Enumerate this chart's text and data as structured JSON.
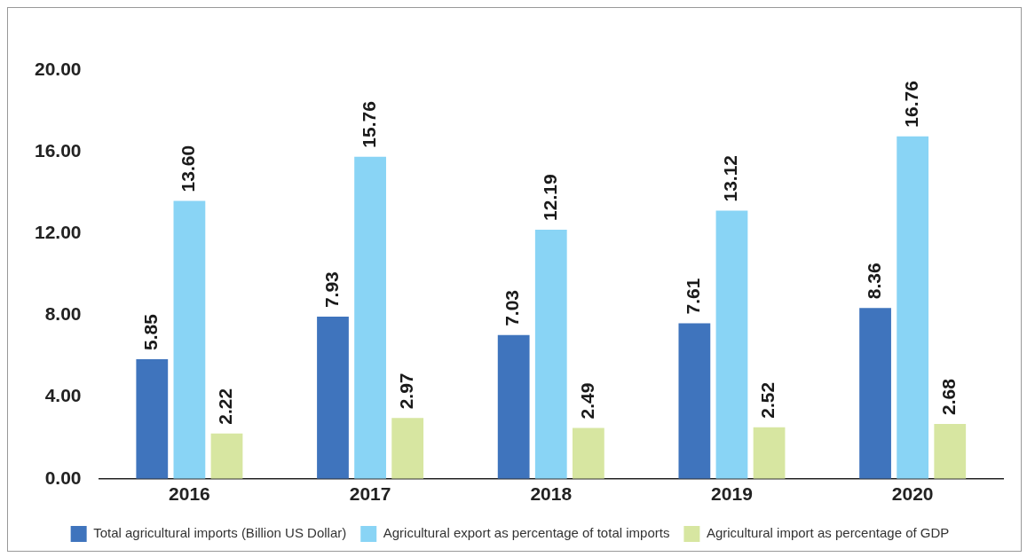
{
  "chart_data": {
    "type": "bar",
    "categories": [
      "2016",
      "2017",
      "2018",
      "2019",
      "2020"
    ],
    "series": [
      {
        "name": "Total agricultural imports (Billion US Dollar)",
        "color": "#3f74bd",
        "values": [
          5.85,
          7.93,
          7.03,
          7.61,
          8.36
        ],
        "value_labels": [
          "5.85",
          "7.93",
          "7.03",
          "7.61",
          "8.36"
        ]
      },
      {
        "name": "Agricultural export as percentage of total imports",
        "color": "#89d4f5",
        "values": [
          13.6,
          15.76,
          12.19,
          13.12,
          16.76
        ],
        "value_labels": [
          "13.60",
          "15.76",
          "12.19",
          "13.12",
          "16.76"
        ]
      },
      {
        "name": "Agricultural import as percentage of GDP",
        "color": "#d7e6a1",
        "values": [
          2.22,
          2.97,
          2.49,
          2.52,
          2.68
        ],
        "value_labels": [
          "2.22",
          "2.97",
          "2.49",
          "2.52",
          "2.68"
        ]
      }
    ],
    "ylim": [
      0,
      20
    ],
    "yticks": [
      {
        "value": 0,
        "label": "0.00"
      },
      {
        "value": 4,
        "label": "4.00"
      },
      {
        "value": 8,
        "label": "8.00"
      },
      {
        "value": 12,
        "label": "12.00"
      },
      {
        "value": 16,
        "label": "16.00"
      },
      {
        "value": 20,
        "label": "20.00"
      }
    ],
    "grid": false,
    "legend": "bottom"
  }
}
